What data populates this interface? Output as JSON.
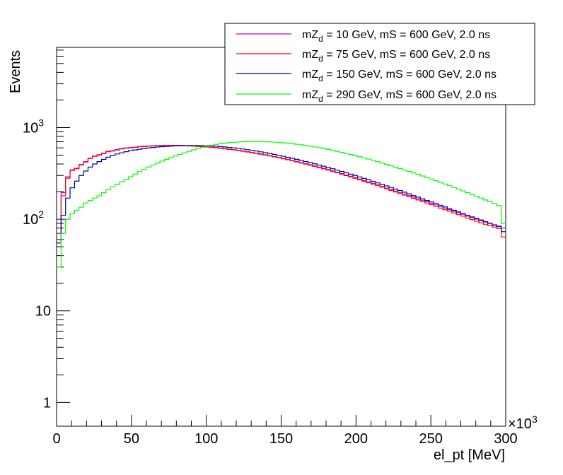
{
  "chart_data": {
    "type": "line",
    "subtype": "step-histogram",
    "xlabel": "el_pt [MeV]",
    "ylabel": "Events",
    "x_scale_label": "×10",
    "x_scale_exponent": "3",
    "xlim": [
      0,
      300000
    ],
    "ylim": [
      0.55,
      7500
    ],
    "yscale": "log",
    "x_tick_values": [
      0,
      50000,
      100000,
      150000,
      200000,
      250000,
      300000
    ],
    "x_tick_labels": [
      "0",
      "50",
      "100",
      "150",
      "200",
      "250",
      "300"
    ],
    "y_ticks": [
      {
        "value": 1,
        "label": "1"
      },
      {
        "value": 10,
        "label": "10"
      },
      {
        "value": 100,
        "label": "10",
        "exp": "2"
      },
      {
        "value": 1000,
        "label": "10",
        "exp": "3"
      }
    ],
    "legend_position": "top-right",
    "bin_width": 3000,
    "series": [
      {
        "name": "mZ_d = 10 GeV, mS = 600 GeV, 2.0 ns",
        "legend_pre": "mZ",
        "legend_sub": "d",
        "legend_post": " = 10 GeV, mS = 600 GeV, 2.0 ns",
        "color": "#cc00cc",
        "values": [
          70,
          195,
          290,
          345,
          360,
          395,
          425,
          465,
          490,
          505,
          525,
          550,
          560,
          575,
          590,
          600,
          605,
          612,
          620,
          625,
          630,
          632,
          635,
          638,
          640,
          640,
          640,
          638,
          636,
          634,
          631,
          627,
          622,
          617,
          611,
          605,
          598,
          590,
          582,
          574,
          565,
          556,
          546,
          536,
          526,
          516,
          505,
          494,
          483,
          472,
          461,
          450,
          438,
          427,
          415,
          404,
          393,
          381,
          370,
          359,
          348,
          337,
          326,
          315,
          304,
          294,
          284,
          274,
          264,
          255,
          246,
          237,
          228,
          219,
          211,
          203,
          195,
          188,
          181,
          174,
          167,
          161,
          155,
          149,
          143,
          137,
          132,
          127,
          122,
          117,
          113,
          108,
          104,
          100,
          96,
          93,
          90,
          87,
          84,
          80
        ]
      },
      {
        "name": "mZ_d = 75 GeV, mS = 600 GeV, 2.0 ns",
        "legend_pre": "mZ",
        "legend_sub": "d",
        "legend_post": " = 75 GeV, mS = 600 GeV, 2.0 ns",
        "color": "#ff0000",
        "values": [
          60,
          180,
          280,
          340,
          355,
          390,
          420,
          460,
          485,
          500,
          520,
          545,
          555,
          570,
          585,
          595,
          600,
          608,
          615,
          620,
          625,
          628,
          630,
          633,
          635,
          635,
          635,
          633,
          631,
          629,
          626,
          622,
          617,
          612,
          606,
          600,
          593,
          585,
          577,
          569,
          560,
          551,
          541,
          531,
          521,
          511,
          500,
          489,
          478,
          467,
          456,
          445,
          433,
          422,
          410,
          399,
          388,
          376,
          365,
          354,
          343,
          332,
          321,
          310,
          299,
          289,
          279,
          269,
          259,
          250,
          241,
          232,
          223,
          214,
          206,
          198,
          190,
          183,
          176,
          169,
          162,
          156,
          150,
          144,
          138,
          132,
          127,
          122,
          117,
          112,
          108,
          103,
          99,
          95,
          91,
          88,
          85,
          82,
          79,
          64
        ]
      },
      {
        "name": "mZ_d = 150 GeV, mS = 600 GeV, 2.0 ns",
        "legend_pre": "mZ",
        "legend_sub": "d",
        "legend_post": " = 150 GeV, mS = 600 GeV, 2.0 ns",
        "color": "#00009e",
        "values": [
          55,
          110,
          170,
          220,
          260,
          300,
          335,
          370,
          400,
          425,
          450,
          475,
          495,
          515,
          530,
          545,
          560,
          570,
          580,
          590,
          598,
          605,
          612,
          618,
          622,
          626,
          630,
          632,
          634,
          635,
          636,
          635,
          634,
          632,
          629,
          625,
          620,
          614,
          607,
          600,
          592,
          583,
          574,
          564,
          554,
          543,
          532,
          521,
          510,
          498,
          486,
          474,
          462,
          450,
          438,
          426,
          414,
          402,
          390,
          378,
          366,
          355,
          343,
          332,
          321,
          310,
          300,
          289,
          279,
          269,
          259,
          249,
          240,
          231,
          222,
          213,
          205,
          197,
          189,
          181,
          174,
          167,
          160,
          154,
          148,
          142,
          136,
          130,
          125,
          120,
          115,
          110,
          106,
          102,
          98,
          94,
          90,
          86,
          83,
          73
        ]
      },
      {
        "name": "mZ_d = 290 GeV, mS = 600 GeV, 2.0 ns",
        "legend_pre": "mZ",
        "legend_sub": "d",
        "legend_post": " = 290 GeV, mS = 600 GeV, 2.0 ns",
        "color": "#00ff00",
        "values": [
          30,
          70,
          100,
          115,
          125,
          135,
          150,
          160,
          170,
          180,
          195,
          210,
          225,
          240,
          255,
          270,
          290,
          310,
          330,
          350,
          370,
          390,
          410,
          430,
          450,
          470,
          490,
          510,
          530,
          550,
          570,
          590,
          610,
          625,
          640,
          655,
          665,
          675,
          685,
          690,
          695,
          700,
          702,
          703,
          703,
          702,
          700,
          697,
          693,
          688,
          682,
          675,
          667,
          658,
          648,
          638,
          627,
          615,
          603,
          590,
          577,
          564,
          550,
          536,
          522,
          508,
          494,
          480,
          466,
          452,
          438,
          424,
          410,
          396,
          383,
          370,
          357,
          344,
          332,
          320,
          308,
          296,
          285,
          274,
          263,
          252,
          242,
          232,
          222,
          213,
          204,
          195,
          186,
          178,
          170,
          162,
          155,
          148,
          141,
          90
        ]
      }
    ]
  }
}
